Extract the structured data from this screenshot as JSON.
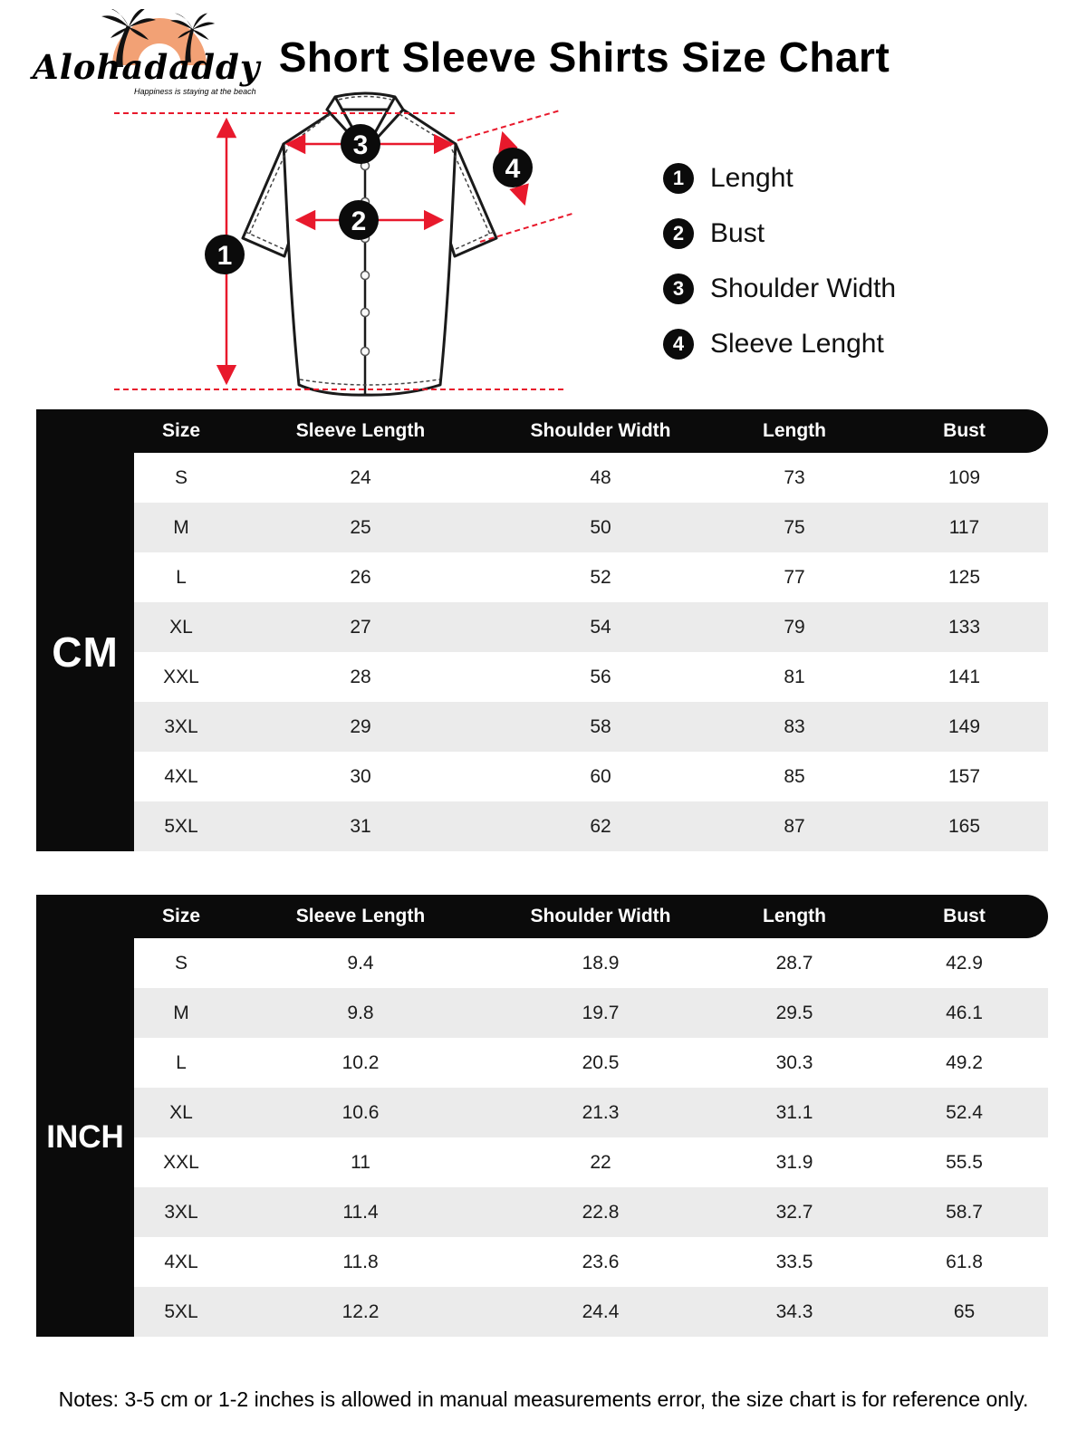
{
  "brand": {
    "name": "Alohadaddy",
    "tagline": "Happiness is staying at the beach"
  },
  "title": "Short Sleeve Shirts Size Chart",
  "diagram": {
    "markers": [
      "1",
      "2",
      "3",
      "4"
    ]
  },
  "legend": [
    {
      "num": "1",
      "label": "Lenght"
    },
    {
      "num": "2",
      "label": "Bust"
    },
    {
      "num": "3",
      "label": "Shoulder Width"
    },
    {
      "num": "4",
      "label": "Sleeve Lenght"
    }
  ],
  "table_columns": [
    "Size",
    "Sleeve Length",
    "Shoulder Width",
    "Length",
    "Bust"
  ],
  "cm_table": {
    "unit_label": "CM",
    "rows": [
      [
        "S",
        "24",
        "48",
        "73",
        "109"
      ],
      [
        "M",
        "25",
        "50",
        "75",
        "117"
      ],
      [
        "L",
        "26",
        "52",
        "77",
        "125"
      ],
      [
        "XL",
        "27",
        "54",
        "79",
        "133"
      ],
      [
        "XXL",
        "28",
        "56",
        "81",
        "141"
      ],
      [
        "3XL",
        "29",
        "58",
        "83",
        "149"
      ],
      [
        "4XL",
        "30",
        "60",
        "85",
        "157"
      ],
      [
        "5XL",
        "31",
        "62",
        "87",
        "165"
      ]
    ]
  },
  "inch_table": {
    "unit_label": "INCH",
    "rows": [
      [
        "S",
        "9.4",
        "18.9",
        "28.7",
        "42.9"
      ],
      [
        "M",
        "9.8",
        "19.7",
        "29.5",
        "46.1"
      ],
      [
        "L",
        "10.2",
        "20.5",
        "30.3",
        "49.2"
      ],
      [
        "XL",
        "10.6",
        "21.3",
        "31.1",
        "52.4"
      ],
      [
        "XXL",
        "11",
        "22",
        "31.9",
        "55.5"
      ],
      [
        "3XL",
        "11.4",
        "22.8",
        "32.7",
        "58.7"
      ],
      [
        "4XL",
        "11.8",
        "23.6",
        "33.5",
        "61.8"
      ],
      [
        "5XL",
        "12.2",
        "24.4",
        "34.3",
        "65"
      ]
    ]
  },
  "note": "Notes: 3-5 cm or 1-2 inches is allowed in manual measurements error, the size chart is for reference only.",
  "colors": {
    "accent_red": "#e8192c",
    "logo_orange": "#f2a175",
    "table_black": "#0b0b0b",
    "row_alt_gray": "#ebebeb"
  }
}
